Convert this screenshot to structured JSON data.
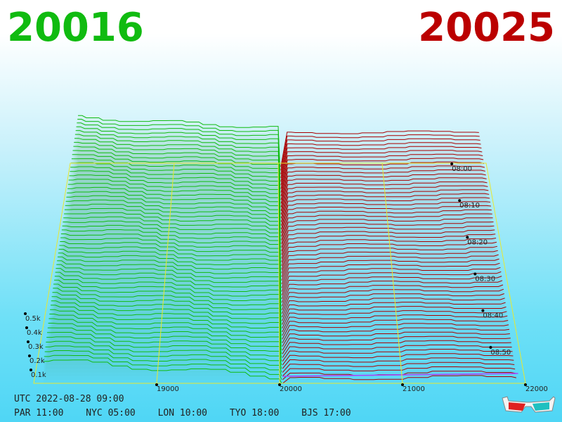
{
  "header": {
    "left_value": "20016",
    "right_value": "20025"
  },
  "colors": {
    "bid": "#10bb10",
    "ask": "#aa0000",
    "axis": "#e8e830",
    "mid_line": "#aa44ff",
    "bid_fill": "#3c9c3c",
    "ask_fill": "#999999"
  },
  "chart_data": {
    "type": "area",
    "x_ticks": [
      "19000",
      "20000",
      "21000",
      "22000"
    ],
    "x_range": [
      18000,
      22000
    ],
    "y_ticks": [
      "0.1k",
      "0.2k",
      "0.3k",
      "0.4k",
      "0.5k"
    ],
    "y_range": [
      0,
      0.6
    ],
    "time_ticks": [
      "08:00",
      "08:10",
      "08:20",
      "08:30",
      "08:40",
      "08:50"
    ],
    "bid_price": 20016,
    "ask_price": 20025,
    "snapshot_count": 60
  },
  "footer": {
    "utc": "UTC 2022-08-28 09:00",
    "timezones": [
      "PAR 11:00",
      "NYC 05:00",
      "LON 10:00",
      "TYO 18:00",
      "BJS 17:00"
    ]
  },
  "glasses_icon": "3d-glasses-icon"
}
